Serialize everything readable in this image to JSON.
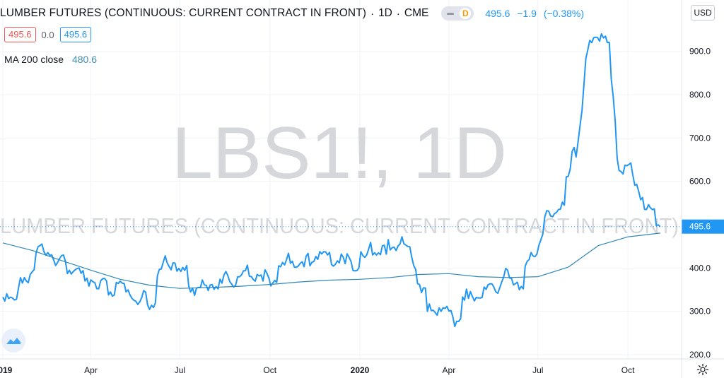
{
  "header": {
    "title": "LUMBER FUTURES (CONTINUOUS: CURRENT CONTRACT IN FRONT)",
    "interval": "1D",
    "exchange": "CME",
    "toggle_letter": "D",
    "last_price": "495.6",
    "change": "−1.9",
    "change_pct": "(−0.38%)"
  },
  "ohlc": {
    "left_box": "495.6",
    "mid": "0.0",
    "right_box": "495.6"
  },
  "indicator": {
    "label": "MA 200 close",
    "value": "480.6"
  },
  "watermark": {
    "symbol": "LBS1!, 1D",
    "name": "LUMBER FUTURES (CONTINUOUS: CURRENT CONTRACT IN FRONT)"
  },
  "currency_button": "USD",
  "price_label": "495.6",
  "icons": {
    "settings": "gear-icon",
    "logo": "tradingview-logo-icon",
    "toggle": "visibility-toggle-icon"
  },
  "colors": {
    "price_line": "#2196f3",
    "ma_line": "#2f87b8",
    "down": "#ef5350",
    "grid": "#f0f3fa",
    "watermark": "#d6d7db"
  },
  "chart_data": {
    "type": "line",
    "title": "LUMBER FUTURES (CONTINUOUS: CURRENT CONTRACT IN FRONT)",
    "xlabel": "",
    "ylabel": "",
    "ylim": [
      190,
      960
    ],
    "grid": true,
    "y_ticks": [
      "200.0",
      "300.0",
      "400.0",
      "500.0",
      "600.0",
      "700.0",
      "800.0",
      "900.0"
    ],
    "x_ticks": [
      "2019",
      "Apr",
      "Jul",
      "Oct",
      "2020",
      "Apr",
      "Jul",
      "Oct"
    ],
    "x_tick_dates": [
      "2019-01-01",
      "2019-04-01",
      "2019-07-01",
      "2019-10-01",
      "2020-01-01",
      "2020-04-01",
      "2020-07-01",
      "2020-10-01"
    ],
    "series": [
      {
        "name": "",
        "x": [
          "2019-01-01",
          "2019-01-15",
          "2019-01-29",
          "2019-02-12",
          "2019-02-26",
          "2019-03-12",
          "2019-03-26",
          "2019-04-09",
          "2019-04-23",
          "2019-05-07",
          "2019-05-21",
          "2019-06-04",
          "2019-06-18",
          "2019-07-02",
          "2019-07-16",
          "2019-07-30",
          "2019-08-13",
          "2019-08-27",
          "2019-09-10",
          "2019-09-24",
          "2019-10-08",
          "2019-10-22",
          "2019-11-05",
          "2019-11-19",
          "2019-12-03",
          "2019-12-17",
          "2019-12-31",
          "2020-01-14",
          "2020-01-28",
          "2020-02-11",
          "2020-02-25",
          "2020-03-10",
          "2020-03-24",
          "2020-04-07",
          "2020-04-21",
          "2020-05-05",
          "2020-05-19",
          "2020-06-02",
          "2020-06-16",
          "2020-06-30",
          "2020-07-14",
          "2020-07-28",
          "2020-08-11",
          "2020-08-25",
          "2020-09-08",
          "2020-09-22",
          "2020-10-06",
          "2020-10-20",
          "2020-11-03"
        ],
        "values": [
          333,
          328,
          385,
          438,
          413,
          386,
          370,
          352,
          335,
          345,
          322,
          309,
          412,
          392,
          337,
          348,
          365,
          360,
          381,
          370,
          367,
          411,
          403,
          420,
          408,
          410,
          400,
          430,
          432,
          455,
          406,
          300,
          300,
          265,
          330,
          332,
          345,
          377,
          352,
          432,
          520,
          545,
          690,
          920,
          935,
          625,
          615,
          535,
          495.6
        ]
      },
      {
        "name": "MA 200 close",
        "x": [
          "2019-01-01",
          "2019-02-01",
          "2019-03-01",
          "2019-04-01",
          "2019-05-01",
          "2019-06-01",
          "2019-07-01",
          "2019-08-01",
          "2019-09-01",
          "2019-10-01",
          "2019-11-01",
          "2019-12-01",
          "2020-01-01",
          "2020-02-01",
          "2020-03-01",
          "2020-04-01",
          "2020-05-01",
          "2020-06-01",
          "2020-07-01",
          "2020-08-01",
          "2020-09-01",
          "2020-10-01",
          "2020-11-03"
        ],
        "values": [
          458,
          440,
          418,
          395,
          374,
          360,
          353,
          355,
          358,
          362,
          368,
          372,
          374,
          378,
          385,
          387,
          380,
          378,
          380,
          402,
          452,
          472,
          480.6
        ]
      }
    ],
    "annotations": [
      "LBS1!, 1D",
      "LUMBER FUTURES (CONTINUOUS: CURRENT CONTRACT IN FRONT)"
    ]
  }
}
